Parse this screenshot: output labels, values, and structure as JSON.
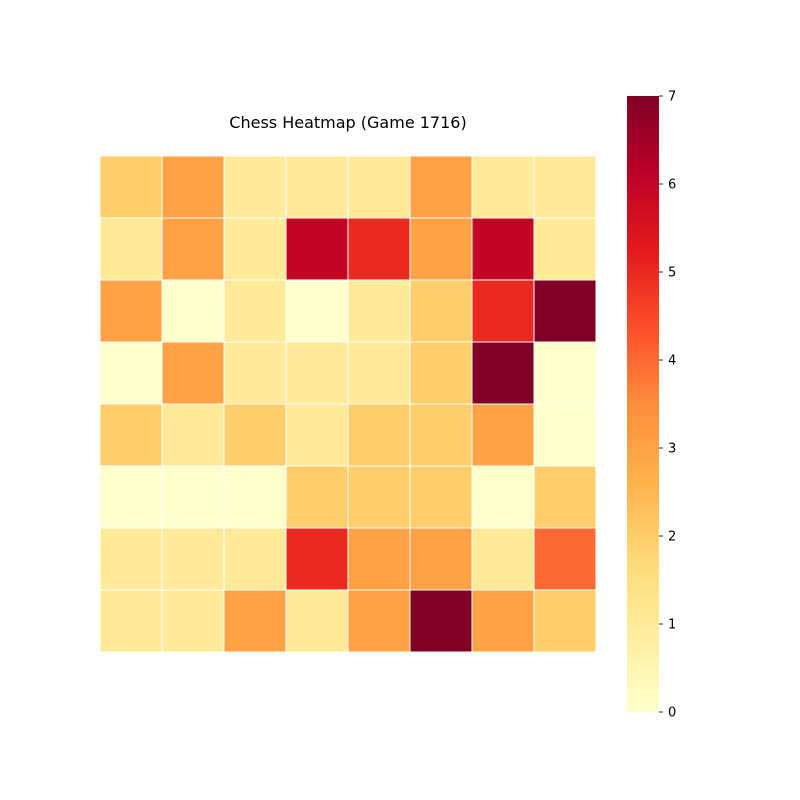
{
  "chart_data": {
    "type": "heatmap",
    "title": "Chess Heatmap (Game 1716)",
    "rows": 8,
    "cols": 8,
    "values": [
      [
        2,
        3,
        1,
        1,
        1,
        3,
        1,
        1
      ],
      [
        1,
        3,
        1,
        6,
        5,
        3,
        6,
        1
      ],
      [
        3,
        0,
        1,
        0,
        1,
        2,
        5,
        7
      ],
      [
        0,
        3,
        1,
        1,
        1,
        2,
        7,
        0
      ],
      [
        2,
        1,
        2,
        1,
        2,
        2,
        3,
        0
      ],
      [
        0,
        0,
        0,
        2,
        2,
        2,
        0,
        2
      ],
      [
        1,
        1,
        1,
        5,
        3,
        3,
        1,
        4
      ],
      [
        1,
        1,
        3,
        1,
        3,
        7,
        3,
        2
      ]
    ],
    "vmin": 0,
    "vmax": 7,
    "colormap": "YlOrRd",
    "cell_border_color": "#ffffff",
    "colorbar": {
      "ticks": [
        0,
        1,
        2,
        3,
        4,
        5,
        6,
        7
      ],
      "tick_labels": [
        "0",
        "1",
        "2",
        "3",
        "4",
        "5",
        "6",
        "7"
      ]
    },
    "xlabel": "",
    "ylabel": "",
    "grid": false
  }
}
